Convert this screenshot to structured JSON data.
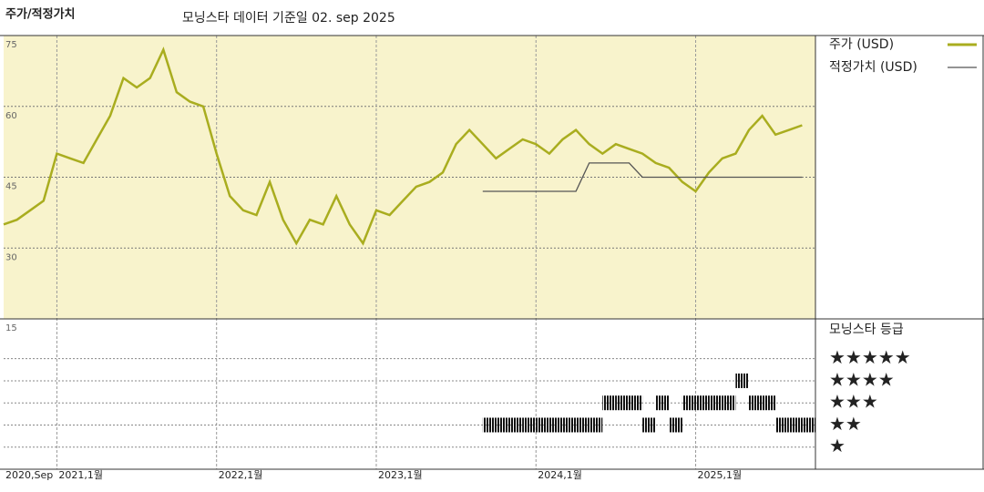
{
  "heading": "주가/적정가치",
  "subheading": "모닝스타 데이터 기준일 02. sep 2025",
  "chart_data": [
    {
      "type": "line",
      "xlim": [
        "2020-09",
        "2025-10"
      ],
      "ylim": [
        15,
        75
      ],
      "yticks": [
        15,
        30,
        45,
        60,
        75
      ],
      "grid": true,
      "xticks": [
        {
          "value": "2020-09",
          "label": "2020,Sep"
        },
        {
          "value": "2021-01",
          "label": "2021,1월"
        },
        {
          "value": "2022-01",
          "label": "2022,1월"
        },
        {
          "value": "2023-01",
          "label": "2023,1월"
        },
        {
          "value": "2024-01",
          "label": "2024,1월"
        },
        {
          "value": "2025-01",
          "label": "2025,1월"
        }
      ],
      "x": [
        "2020-09",
        "2020-10",
        "2020-11",
        "2020-12",
        "2021-01",
        "2021-02",
        "2021-03",
        "2021-04",
        "2021-05",
        "2021-06",
        "2021-07",
        "2021-08",
        "2021-09",
        "2021-10",
        "2021-11",
        "2021-12",
        "2022-01",
        "2022-02",
        "2022-03",
        "2022-04",
        "2022-05",
        "2022-06",
        "2022-07",
        "2022-08",
        "2022-09",
        "2022-10",
        "2022-11",
        "2022-12",
        "2023-01",
        "2023-02",
        "2023-03",
        "2023-04",
        "2023-05",
        "2023-06",
        "2023-07",
        "2023-08",
        "2023-09",
        "2023-10",
        "2023-11",
        "2023-12",
        "2024-01",
        "2024-02",
        "2024-03",
        "2024-04",
        "2024-05",
        "2024-06",
        "2024-07",
        "2024-08",
        "2024-09",
        "2024-10",
        "2024-11",
        "2024-12",
        "2025-01",
        "2025-02",
        "2025-03",
        "2025-04",
        "2025-05",
        "2025-06",
        "2025-07",
        "2025-08",
        "2025-09"
      ],
      "series": [
        {
          "name": "주가 (USD)",
          "color": "#a9ad1f",
          "values": [
            35,
            36,
            38,
            40,
            50,
            49,
            48,
            53,
            58,
            66,
            64,
            66,
            72,
            63,
            61,
            60,
            50,
            41,
            38,
            37,
            44,
            36,
            31,
            36,
            35,
            41,
            35,
            31,
            38,
            37,
            40,
            43,
            44,
            46,
            52,
            55,
            52,
            49,
            51,
            53,
            52,
            50,
            53,
            55,
            52,
            50,
            52,
            51,
            50,
            48,
            47,
            44,
            42,
            46,
            49,
            50,
            55,
            58,
            54,
            55,
            56
          ]
        },
        {
          "name": "적정가치 (USD)",
          "color": "#555555",
          "values": [
            null,
            null,
            null,
            null,
            null,
            null,
            null,
            null,
            null,
            null,
            null,
            null,
            null,
            null,
            null,
            null,
            null,
            null,
            null,
            null,
            null,
            null,
            null,
            null,
            null,
            null,
            null,
            null,
            null,
            null,
            null,
            null,
            null,
            null,
            null,
            null,
            42,
            42,
            42,
            42,
            42,
            42,
            42,
            42,
            48,
            48,
            48,
            48,
            45,
            45,
            45,
            45,
            45,
            45,
            45,
            45,
            45,
            45,
            45,
            45,
            45
          ]
        }
      ]
    },
    {
      "type": "rating",
      "title": "모닝스타 등급",
      "xlim": [
        "2020-09",
        "2025-10"
      ],
      "ylim": [
        0,
        6.8
      ],
      "yticks": [
        {
          "value": 5,
          "label": "★★★★★"
        },
        {
          "value": 4,
          "label": "★★★★"
        },
        {
          "value": 3,
          "label": "★★★"
        },
        {
          "value": 2,
          "label": "★★"
        },
        {
          "value": 1,
          "label": "★"
        }
      ],
      "x": [
        "2023-09",
        "2023-10",
        "2023-11",
        "2023-12",
        "2024-01",
        "2024-02",
        "2024-03",
        "2024-04",
        "2024-05",
        "2024-06",
        "2024-07",
        "2024-08",
        "2024-09",
        "2024-10",
        "2024-11",
        "2024-12",
        "2025-01",
        "2025-02",
        "2025-03",
        "2025-04",
        "2025-05",
        "2025-06",
        "2025-07",
        "2025-08",
        "2025-09"
      ],
      "values": [
        2,
        2,
        2,
        2,
        2,
        2,
        2,
        2,
        2,
        3,
        3,
        3,
        2,
        3,
        2,
        3,
        3,
        3,
        3,
        4,
        3,
        3,
        2,
        2,
        2
      ]
    }
  ]
}
